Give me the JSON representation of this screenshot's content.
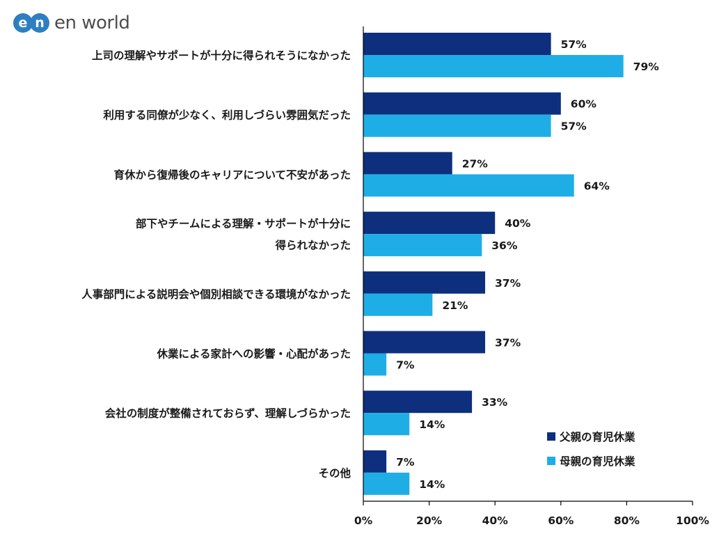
{
  "logo": {
    "mark_text": "en",
    "brand_text": "en world",
    "mark_color": "#2e7fc1"
  },
  "colors": {
    "father": "#0d2f7e",
    "mother": "#1eaee5",
    "axis": "#000000",
    "grid": "#bfbfbf"
  },
  "chart_data": {
    "type": "bar",
    "orientation": "horizontal",
    "categories": [
      [
        "上司の理解やサポートが十分に得られそうになかった"
      ],
      [
        "利用する同僚が少なく、利用しづらい雰囲気だった"
      ],
      [
        "育休から復帰後のキャリアについて不安があった"
      ],
      [
        "部下やチームによる理解・サポートが十分に",
        "得られなかった"
      ],
      [
        "人事部門による説明会や個別相談できる環境がなかった"
      ],
      [
        "休業による家計への影響・心配があった"
      ],
      [
        "会社の制度が整備されておらず、理解しづらかった"
      ],
      [
        "その他"
      ]
    ],
    "series": [
      {
        "name": "父親の育児休業",
        "values": [
          57,
          60,
          27,
          40,
          37,
          37,
          33,
          7
        ]
      },
      {
        "name": "母親の育児休業",
        "values": [
          79,
          57,
          64,
          36,
          21,
          7,
          14,
          14
        ]
      }
    ],
    "value_suffix": "%",
    "xlim": [
      0,
      100
    ],
    "xticks": [
      0,
      20,
      40,
      60,
      80,
      100
    ],
    "xtick_labels": [
      "0%",
      "20%",
      "40%",
      "60%",
      "80%",
      "100%"
    ],
    "grid": false,
    "legend_position": "bottom-right"
  }
}
